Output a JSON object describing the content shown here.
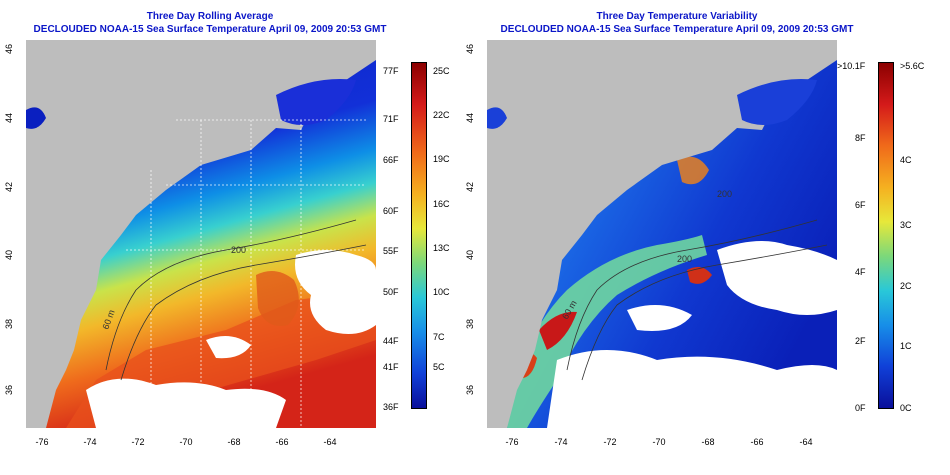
{
  "left_panel": {
    "title_line1": "Three Day Rolling Average",
    "title_line2": "DECLOUDED NOAA-15 Sea Surface Temperature April 09, 2009 20:53 GMT",
    "x_ticks": [
      "-76",
      "-74",
      "-72",
      "-70",
      "-68",
      "-66",
      "-64"
    ],
    "y_ticks": [
      "36",
      "38",
      "40",
      "42",
      "44",
      "46"
    ],
    "colorbar_f": [
      "77F",
      "71F",
      "66F",
      "60F",
      "55F",
      "50F",
      "44F",
      "41F",
      "36F"
    ],
    "colorbar_c": [
      "25C",
      "22C",
      "19C",
      "16C",
      "13C",
      "10C",
      "7C",
      "5C"
    ],
    "contour_labels": [
      "60 m",
      "200"
    ]
  },
  "right_panel": {
    "title_line1": "Three Day Temperature Variability",
    "title_line2": "DECLOUDED NOAA-15 Sea Surface Temperature April 09, 2009 20:53 GMT",
    "x_ticks": [
      "-76",
      "-74",
      "-72",
      "-70",
      "-68",
      "-66",
      "-64"
    ],
    "y_ticks": [
      "36",
      "38",
      "40",
      "42",
      "44",
      "46"
    ],
    "colorbar_f": [
      ">10.1F",
      "8F",
      "6F",
      "4F",
      "2F",
      "0F"
    ],
    "colorbar_c": [
      ">5.6C",
      "4C",
      "3C",
      "2C",
      "1C",
      "0C"
    ],
    "contour_labels": [
      "60 m",
      "200",
      "200"
    ]
  },
  "colors": {
    "title": "#0b16c8",
    "land": "#bdbdbd",
    "cloud": "#ffffff"
  }
}
